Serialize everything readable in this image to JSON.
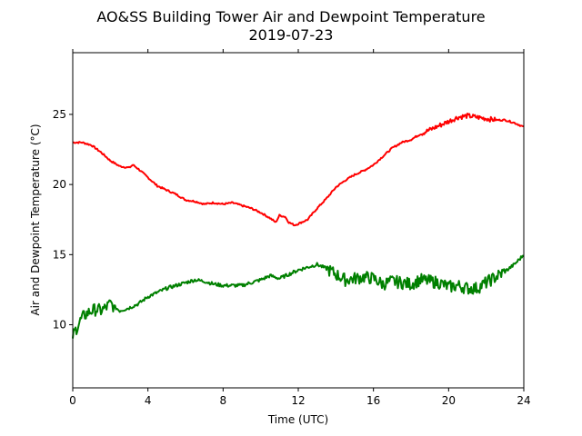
{
  "chart_data": {
    "type": "line",
    "title": "AO&SS Building Tower Air and Dewpoint Temperature",
    "subtitle": "2019-07-23",
    "xlabel": "Time (UTC)",
    "ylabel": "Air and Dewpoint Temperature (°C)",
    "xlim": [
      0,
      24
    ],
    "ylim": [
      5.5,
      29.4
    ],
    "xticks": [
      0,
      4,
      8,
      12,
      16,
      20,
      24
    ],
    "yticks": [
      10,
      15,
      20,
      25
    ],
    "grid": false,
    "legend": "none",
    "series": [
      {
        "color": "#ff0000",
        "x": [
          0,
          0.5,
          1,
          1.5,
          2,
          2.5,
          3,
          3.2,
          3.5,
          4,
          4.5,
          5,
          5.5,
          6,
          6.5,
          7,
          7.5,
          8,
          8.5,
          9,
          9.5,
          10,
          10.5,
          10.8,
          11,
          11.3,
          11.5,
          11.8,
          12,
          12.5,
          13,
          13.5,
          14,
          14.5,
          15,
          15.5,
          16,
          16.5,
          17,
          17.5,
          18,
          18.5,
          19,
          19.5,
          20,
          20.5,
          21,
          21.5,
          22,
          22.5,
          23,
          23.5,
          24
        ],
        "y": [
          23.0,
          23.0,
          22.8,
          22.3,
          21.7,
          21.3,
          21.2,
          21.4,
          21.1,
          20.5,
          19.9,
          19.6,
          19.3,
          18.9,
          18.8,
          18.6,
          18.7,
          18.6,
          18.7,
          18.5,
          18.3,
          18.0,
          17.6,
          17.3,
          17.8,
          17.7,
          17.3,
          17.1,
          17.2,
          17.5,
          18.3,
          19.0,
          19.8,
          20.3,
          20.7,
          21.0,
          21.4,
          22.0,
          22.6,
          23.0,
          23.2,
          23.6,
          23.9,
          24.2,
          24.5,
          24.8,
          24.9,
          24.8,
          24.7,
          24.6,
          24.6,
          24.4,
          24.1
        ]
      },
      {
        "color": "#008000",
        "x": [
          0,
          0.25,
          0.5,
          0.75,
          1,
          1.25,
          1.5,
          1.75,
          2,
          2.5,
          3,
          3.5,
          4,
          4.5,
          5,
          5.5,
          6,
          6.5,
          7,
          7.5,
          8,
          8.5,
          9,
          9.5,
          10,
          10.5,
          11,
          11.5,
          12,
          12.5,
          13,
          13.5,
          14,
          14.5,
          15,
          15.5,
          16,
          16.5,
          17,
          17.5,
          18,
          18.5,
          19,
          19.5,
          20,
          20.5,
          21,
          21.5,
          22,
          22.5,
          23,
          23.5,
          24
        ],
        "y": [
          9.2,
          9.9,
          10.5,
          10.8,
          11.0,
          11.1,
          11.0,
          11.2,
          11.5,
          11.0,
          11.2,
          11.5,
          12.0,
          12.3,
          12.6,
          12.8,
          13.0,
          13.2,
          13.1,
          12.9,
          12.8,
          12.8,
          12.8,
          13.0,
          13.2,
          13.5,
          13.3,
          13.6,
          13.9,
          14.1,
          14.3,
          14.0,
          13.6,
          13.2,
          13.3,
          13.4,
          13.3,
          12.9,
          13.1,
          13.0,
          12.9,
          13.2,
          13.1,
          13.0,
          12.7,
          12.8,
          12.6,
          12.6,
          13.0,
          13.4,
          13.8,
          14.3,
          15.0
        ]
      }
    ]
  }
}
